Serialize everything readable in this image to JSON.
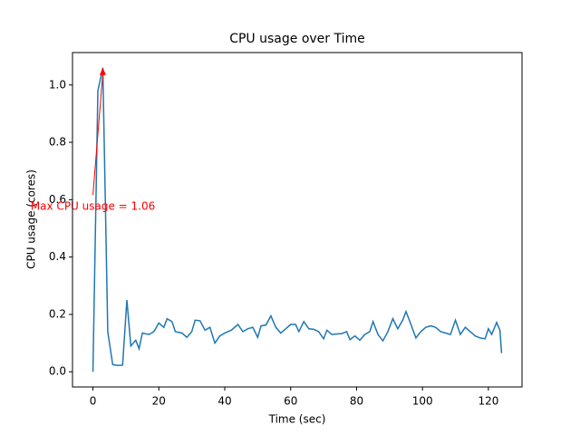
{
  "chart_data": {
    "type": "line",
    "title": "CPU usage over Time",
    "x_label": "Time (sec)",
    "y_label": "CPU usage (cores)",
    "x": [
      0,
      1.5,
      3,
      4.5,
      6,
      7.5,
      9,
      10.3,
      11.5,
      13,
      14,
      15,
      17,
      18.5,
      20,
      21.5,
      22.5,
      24,
      25,
      27,
      28.5,
      30,
      31,
      32.5,
      34,
      35.5,
      37,
      38.5,
      40,
      42,
      44,
      45.5,
      47,
      48.5,
      50,
      51,
      52.5,
      54,
      55.5,
      57,
      58.5,
      60,
      61.5,
      62.5,
      64,
      65.5,
      67,
      68.5,
      70,
      71,
      72.5,
      74,
      75.5,
      77,
      78,
      79.5,
      81,
      82.5,
      84,
      85,
      86.5,
      88,
      89.5,
      91,
      92.5,
      94,
      95,
      96.5,
      98,
      99.5,
      101,
      102.5,
      104,
      105.5,
      107,
      108.5,
      110,
      111.5,
      113,
      114.5,
      116,
      117.5,
      119,
      120,
      121,
      122.5,
      123.5,
      124
    ],
    "series": [
      {
        "color": "#1f77b4",
        "values": [
          0.0,
          0.98,
          1.06,
          0.14,
          0.025,
          0.022,
          0.023,
          0.25,
          0.09,
          0.11,
          0.08,
          0.135,
          0.13,
          0.14,
          0.17,
          0.155,
          0.185,
          0.175,
          0.14,
          0.135,
          0.12,
          0.14,
          0.18,
          0.178,
          0.145,
          0.155,
          0.1,
          0.125,
          0.135,
          0.145,
          0.165,
          0.14,
          0.15,
          0.155,
          0.12,
          0.16,
          0.163,
          0.195,
          0.155,
          0.135,
          0.15,
          0.165,
          0.165,
          0.14,
          0.175,
          0.15,
          0.148,
          0.14,
          0.115,
          0.145,
          0.13,
          0.132,
          0.133,
          0.14,
          0.112,
          0.125,
          0.11,
          0.13,
          0.14,
          0.175,
          0.13,
          0.108,
          0.14,
          0.185,
          0.15,
          0.18,
          0.21,
          0.165,
          0.118,
          0.14,
          0.155,
          0.16,
          0.155,
          0.14,
          0.135,
          0.13,
          0.18,
          0.13,
          0.155,
          0.14,
          0.125,
          0.118,
          0.115,
          0.15,
          0.13,
          0.172,
          0.145,
          0.065
        ]
      }
    ],
    "annotation": {
      "text": "Max CPU usage = 1.06",
      "color": "red"
    },
    "xlim": [
      -6.2,
      130.2
    ],
    "ylim": [
      -0.053,
      1.113
    ],
    "xticks": [
      0,
      20,
      40,
      60,
      80,
      100,
      120
    ],
    "yticks": [
      {
        "value": 0,
        "label": "0.0"
      },
      0.2,
      0.4,
      0.6,
      0.8,
      {
        "value": 1,
        "label": "1.0"
      }
    ]
  }
}
